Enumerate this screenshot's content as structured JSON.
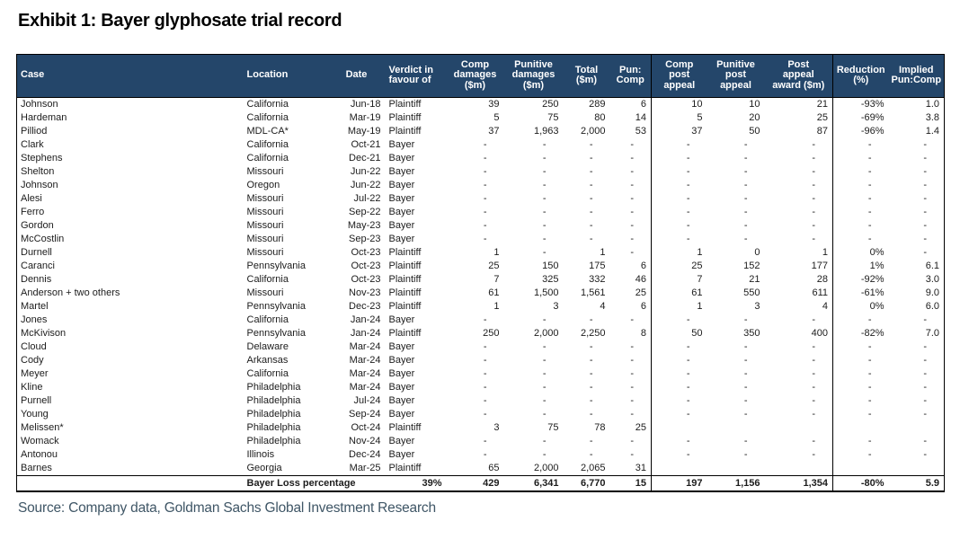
{
  "title": "Exhibit 1: Bayer glyphosate trial record",
  "source": "Source: Company data, Goldman Sachs Global Investment Research",
  "colors": {
    "header_bg": "#24466a",
    "header_text": "#ffffff",
    "table_border": "#000000",
    "title_text": "#000000",
    "source_text": "#3f5666"
  },
  "chart_data": {
    "type": "table",
    "title": "Exhibit 1: Bayer glyphosate trial record",
    "columns": [
      "Case",
      "Location",
      "Date",
      "Verdict in\nfavour of",
      "Comp\ndamages\n($m)",
      "Punitive\ndamages\n($m)",
      "Total\n($m)",
      "Pun:\nComp",
      "Comp\npost\nappeal",
      "Punitive\npost\nappeal",
      "Post\nappeal\naward ($m)",
      "Reduction\n(%)",
      "Implied\nPun:Comp"
    ],
    "group_dividers_after_columns": [
      7,
      10
    ],
    "rows": [
      [
        "Johnson",
        "California",
        "Jun-18",
        "Plaintiff",
        "39",
        "250",
        "289",
        "6",
        "10",
        "10",
        "21",
        "-93%",
        "1.0"
      ],
      [
        "Hardeman",
        "California",
        "Mar-19",
        "Plaintiff",
        "5",
        "75",
        "80",
        "14",
        "5",
        "20",
        "25",
        "-69%",
        "3.8"
      ],
      [
        "Pilliod",
        "MDL-CA*",
        "May-19",
        "Plaintiff",
        "37",
        "1,963",
        "2,000",
        "53",
        "37",
        "50",
        "87",
        "-96%",
        "1.4"
      ],
      [
        "Clark",
        "California",
        "Oct-21",
        "Bayer",
        "-",
        "-",
        "-",
        "-",
        "-",
        "-",
        "-",
        "-",
        "-"
      ],
      [
        "Stephens",
        "California",
        "Dec-21",
        "Bayer",
        "-",
        "-",
        "-",
        "-",
        "-",
        "-",
        "-",
        "-",
        "-"
      ],
      [
        "Shelton",
        "Missouri",
        "Jun-22",
        "Bayer",
        "-",
        "-",
        "-",
        "-",
        "-",
        "-",
        "-",
        "-",
        "-"
      ],
      [
        "Johnson",
        "Oregon",
        "Jun-22",
        "Bayer",
        "-",
        "-",
        "-",
        "-",
        "-",
        "-",
        "-",
        "-",
        "-"
      ],
      [
        "Alesi",
        "Missouri",
        "Jul-22",
        "Bayer",
        "-",
        "-",
        "-",
        "-",
        "-",
        "-",
        "-",
        "-",
        "-"
      ],
      [
        "Ferro",
        "Missouri",
        "Sep-22",
        "Bayer",
        "-",
        "-",
        "-",
        "-",
        "-",
        "-",
        "-",
        "-",
        "-"
      ],
      [
        "Gordon",
        "Missouri",
        "May-23",
        "Bayer",
        "-",
        "-",
        "-",
        "-",
        "-",
        "-",
        "-",
        "-",
        "-"
      ],
      [
        "McCostlin",
        "Missouri",
        "Sep-23",
        "Bayer",
        "-",
        "-",
        "-",
        "-",
        "-",
        "-",
        "-",
        "-",
        "-"
      ],
      [
        "Durnell",
        "Missouri",
        "Oct-23",
        "Plaintiff",
        "1",
        "-",
        "1",
        "-",
        "1",
        "0",
        "1",
        "0%",
        "-"
      ],
      [
        "Caranci",
        "Pennsylvania",
        "Oct-23",
        "Plaintiff",
        "25",
        "150",
        "175",
        "6",
        "25",
        "152",
        "177",
        "1%",
        "6.1"
      ],
      [
        "Dennis",
        "California",
        "Oct-23",
        "Plaintiff",
        "7",
        "325",
        "332",
        "46",
        "7",
        "21",
        "28",
        "-92%",
        "3.0"
      ],
      [
        "Anderson + two others",
        "Missouri",
        "Nov-23",
        "Plaintiff",
        "61",
        "1,500",
        "1,561",
        "25",
        "61",
        "550",
        "611",
        "-61%",
        "9.0"
      ],
      [
        "Martel",
        "Pennsylvania",
        "Dec-23",
        "Plaintiff",
        "1",
        "3",
        "4",
        "6",
        "1",
        "3",
        "4",
        "0%",
        "6.0"
      ],
      [
        "Jones",
        "California",
        "Jan-24",
        "Bayer",
        "-",
        "-",
        "-",
        "-",
        "-",
        "-",
        "-",
        "-",
        "-"
      ],
      [
        "McKivison",
        "Pennsylvania",
        "Jan-24",
        "Plaintiff",
        "250",
        "2,000",
        "2,250",
        "8",
        "50",
        "350",
        "400",
        "-82%",
        "7.0"
      ],
      [
        "Cloud",
        "Delaware",
        "Mar-24",
        "Bayer",
        "-",
        "-",
        "-",
        "-",
        "-",
        "-",
        "-",
        "-",
        "-"
      ],
      [
        "Cody",
        "Arkansas",
        "Mar-24",
        "Bayer",
        "-",
        "-",
        "-",
        "-",
        "-",
        "-",
        "-",
        "-",
        "-"
      ],
      [
        "Meyer",
        "California",
        "Mar-24",
        "Bayer",
        "-",
        "-",
        "-",
        "-",
        "-",
        "-",
        "-",
        "-",
        "-"
      ],
      [
        "Kline",
        "Philadelphia",
        "Mar-24",
        "Bayer",
        "-",
        "-",
        "-",
        "-",
        "-",
        "-",
        "-",
        "-",
        "-"
      ],
      [
        "Purnell",
        "Philadelphia",
        "Jul-24",
        "Bayer",
        "-",
        "-",
        "-",
        "-",
        "-",
        "-",
        "-",
        "-",
        "-"
      ],
      [
        "Young",
        "Philadelphia",
        "Sep-24",
        "Bayer",
        "-",
        "-",
        "-",
        "-",
        "-",
        "-",
        "-",
        "-",
        "-"
      ],
      [
        "Melissen*",
        "Philadelphia",
        "Oct-24",
        "Plaintiff",
        "3",
        "75",
        "78",
        "25",
        "",
        "",
        "",
        "",
        ""
      ],
      [
        "Womack",
        "Philadelphia",
        "Nov-24",
        "Bayer",
        "-",
        "-",
        "-",
        "-",
        "-",
        "-",
        "-",
        "-",
        "-"
      ],
      [
        "Antonou",
        "Illinois",
        "Dec-24",
        "Bayer",
        "-",
        "-",
        "-",
        "-",
        "-",
        "-",
        "-",
        "-",
        "-"
      ],
      [
        "Barnes",
        "Georgia",
        "Mar-25",
        "Plaintiff",
        "65",
        "2,000",
        "2,065",
        "31",
        "",
        "",
        "",
        "",
        ""
      ]
    ],
    "total_row_label": "Bayer Loss percentage",
    "total_row": [
      "",
      "Bayer Loss percentage",
      "",
      "39%",
      "429",
      "6,341",
      "6,770",
      "15",
      "197",
      "1,156",
      "1,354",
      "-80%",
      "5.9"
    ]
  }
}
